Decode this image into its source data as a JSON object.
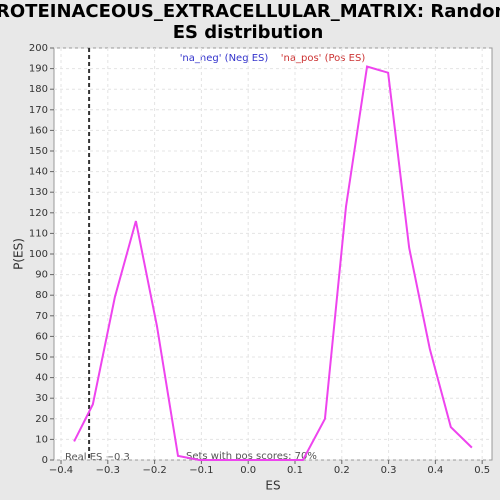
{
  "chart_data": {
    "type": "line",
    "title": "PROTEINACEOUS_EXTRACELLULAR_MATRIX: Random ES distribution",
    "xlabel": "ES",
    "ylabel": "P(ES)",
    "x": [
      -0.372,
      -0.332,
      -0.285,
      -0.24,
      -0.195,
      -0.15,
      -0.105,
      -0.06,
      -0.015,
      0.03,
      0.075,
      0.117,
      0.164,
      0.209,
      0.254,
      0.299,
      0.344,
      0.388,
      0.433,
      0.478
    ],
    "series": [
      {
        "name": "P(ES)",
        "color": "#ee44ee",
        "values": [
          9,
          27,
          79,
          116,
          65,
          2,
          0,
          0,
          0,
          0,
          0,
          0,
          20,
          123,
          191,
          188,
          103,
          54,
          16,
          6
        ]
      }
    ],
    "xlim": [
      -0.415,
      0.521
    ],
    "ylim": [
      0,
      200
    ],
    "xticks": [
      {
        "value": -0.4,
        "label": "−0.4"
      },
      {
        "value": -0.3,
        "label": "−0.3"
      },
      {
        "value": -0.2,
        "label": "−0.2"
      },
      {
        "value": -0.1,
        "label": "−0.1"
      },
      {
        "value": 0,
        "label": "0.0"
      },
      0.1,
      0.2,
      0.3,
      0.4,
      0.5
    ],
    "yticks": [
      0,
      10,
      20,
      30,
      40,
      50,
      60,
      70,
      80,
      90,
      100,
      110,
      120,
      130,
      140,
      150,
      160,
      170,
      180,
      190,
      200
    ],
    "grid": true,
    "real_es": -0.34,
    "annotations": [
      "'na_neg' (Neg ES)",
      "'na_pos' (Pos ES)",
      "Real ES −0.3",
      "Sets with pos scores: 70%"
    ]
  }
}
